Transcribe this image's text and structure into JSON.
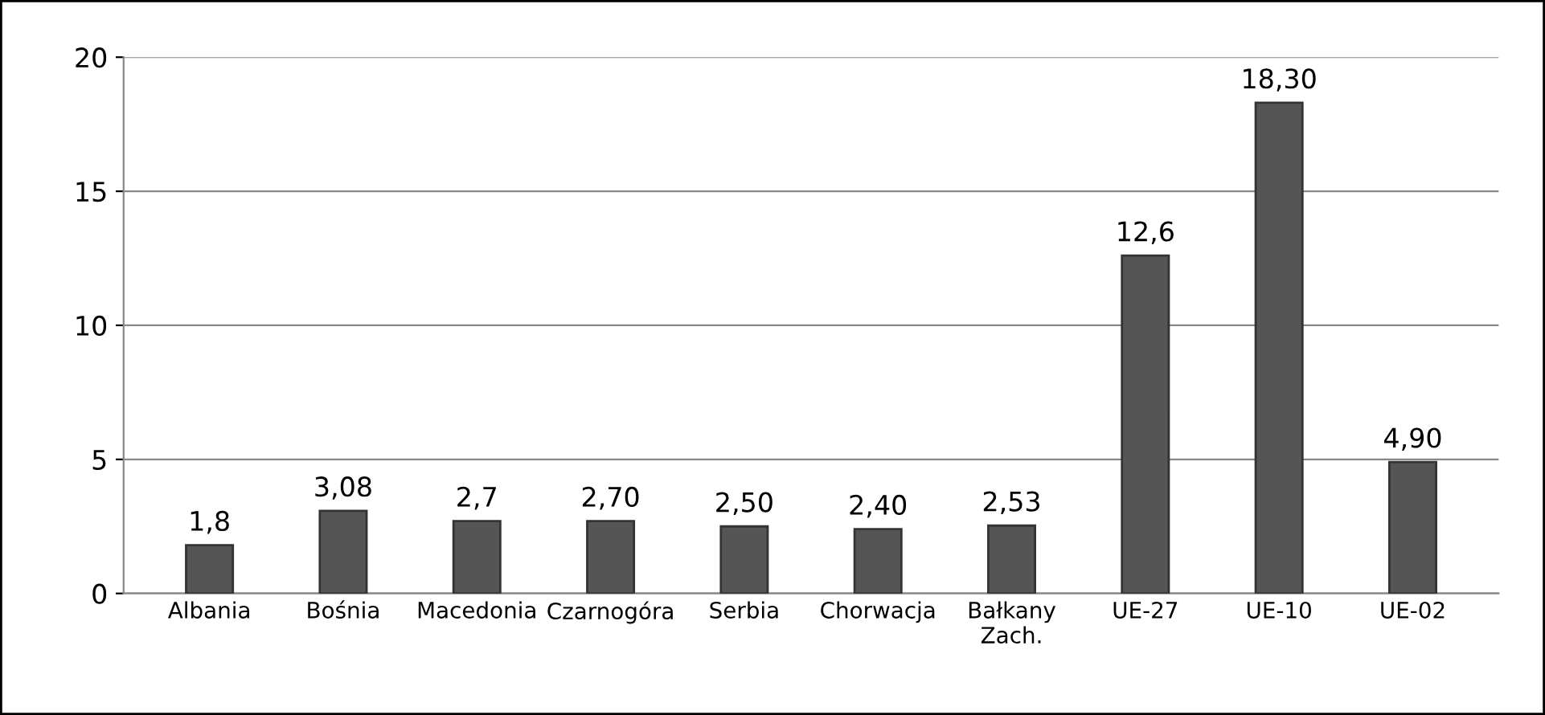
{
  "chart_data": {
    "type": "bar",
    "categories": [
      "Albania",
      "Bośnia",
      "Macedonia",
      "Czarnogóra",
      "Serbia",
      "Chorwacja",
      "Bałkany\nZach.",
      "UE-27",
      "UE-10",
      "UE-02"
    ],
    "values": [
      1.8,
      3.08,
      2.7,
      2.7,
      2.5,
      2.4,
      2.53,
      12.6,
      18.3,
      4.9
    ],
    "value_labels": [
      "1,8",
      "3,08",
      "2,7",
      "2,70",
      "2,50",
      "2,40",
      "2,53",
      "12,6",
      "18,30",
      "4,90"
    ],
    "color": "#555555",
    "ylim": [
      0,
      20
    ],
    "yticks": [
      0,
      5,
      10,
      15,
      20
    ],
    "grid": "y"
  }
}
